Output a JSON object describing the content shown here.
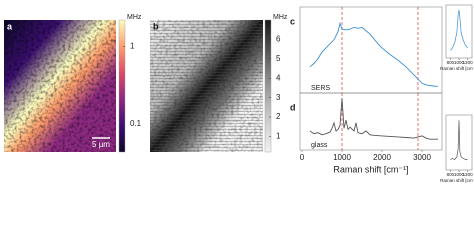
{
  "chart_data": [
    {
      "type": "image",
      "label": "a",
      "scale_bar": "5 µm",
      "colormap": [
        "#0d0829",
        "#3b0f6f",
        "#8c2981",
        "#de4968",
        "#fe9f6d",
        "#fcfdbf"
      ],
      "colorbar": {
        "unit": "MHz",
        "log": true,
        "ylim": [
          0.043,
          2.2
        ],
        "yticks": [
          1,
          0.1
        ]
      }
    },
    {
      "type": "image",
      "label": "b",
      "colormap": [
        "#f2f2f2",
        "#bdbdbd",
        "#6e6e6e",
        "#1a1a1a"
      ],
      "colorbar": {
        "unit": "MHz",
        "log": false,
        "ylim": [
          0.2,
          7
        ],
        "yticks": [
          1,
          2,
          3,
          4,
          5,
          6
        ]
      }
    },
    {
      "type": "line",
      "label": "c",
      "annotation": "SERS",
      "color": "#3a8fd0",
      "vline_color": "#d9534f",
      "x": [
        200,
        300,
        400,
        500,
        600,
        700,
        800,
        900,
        950,
        1000,
        1100,
        1200,
        1300,
        1400,
        1500,
        1600,
        1700,
        1800,
        1900,
        2000,
        2200,
        2400,
        2600,
        2800,
        2900,
        3000,
        3100,
        3200,
        3400
      ],
      "values": [
        0.32,
        0.36,
        0.42,
        0.5,
        0.55,
        0.6,
        0.65,
        0.75,
        0.85,
        0.78,
        0.77,
        0.78,
        0.8,
        0.79,
        0.8,
        0.76,
        0.72,
        0.66,
        0.6,
        0.55,
        0.47,
        0.4,
        0.32,
        0.22,
        0.17,
        0.12,
        0.1,
        0.09,
        0.08
      ],
      "vlines": [
        1000,
        2900
      ],
      "xlim": [
        -50,
        3500
      ],
      "ylim": [
        0,
        1.05
      ]
    },
    {
      "type": "line",
      "color": "#3a8fd0",
      "xlabel": "Raman shift [cm⁻¹]",
      "x": [
        800,
        850,
        900,
        950,
        980,
        1000,
        1020,
        1050,
        1100,
        1150,
        1200
      ],
      "values": [
        0.15,
        0.2,
        0.3,
        0.5,
        0.85,
        0.95,
        0.8,
        0.5,
        0.35,
        0.25,
        0.2
      ],
      "xlim": [
        700,
        1300
      ],
      "xticks": [
        800,
        1000,
        1200
      ],
      "ylim": [
        0,
        1.05
      ]
    },
    {
      "type": "line",
      "label": "d",
      "annotation": "glass",
      "color": "#555555",
      "vline_color": "#d9534f",
      "xlabel": "Raman shift [cm⁻¹]",
      "x": [
        200,
        300,
        400,
        500,
        600,
        700,
        750,
        800,
        850,
        900,
        950,
        1000,
        1050,
        1100,
        1150,
        1200,
        1300,
        1350,
        1400,
        1500,
        1600,
        1700,
        1800,
        2000,
        2200,
        2400,
        2600,
        2800,
        2900,
        3000,
        3100,
        3200,
        3400
      ],
      "values": [
        0.35,
        0.3,
        0.32,
        0.28,
        0.3,
        0.33,
        0.4,
        0.5,
        0.35,
        0.38,
        0.45,
        0.95,
        0.4,
        0.55,
        0.38,
        0.42,
        0.35,
        0.5,
        0.32,
        0.3,
        0.35,
        0.28,
        0.27,
        0.26,
        0.25,
        0.24,
        0.23,
        0.22,
        0.24,
        0.26,
        0.22,
        0.2,
        0.2
      ],
      "vlines": [
        1000,
        2900
      ],
      "xlim": [
        -50,
        3500
      ],
      "xticks": [
        0,
        1000,
        2000,
        3000
      ],
      "ylim": [
        0,
        1.05
      ]
    },
    {
      "type": "line",
      "color": "#555555",
      "xlabel": "Raman shift [cm⁻¹]",
      "x": [
        800,
        850,
        900,
        950,
        980,
        1000,
        1020,
        1050,
        1100,
        1150,
        1200
      ],
      "values": [
        0.2,
        0.22,
        0.2,
        0.25,
        0.4,
        0.95,
        0.35,
        0.25,
        0.22,
        0.2,
        0.2
      ],
      "xlim": [
        700,
        1300
      ],
      "xticks": [
        800,
        1000,
        1200
      ],
      "ylim": [
        0,
        1.05
      ]
    }
  ]
}
